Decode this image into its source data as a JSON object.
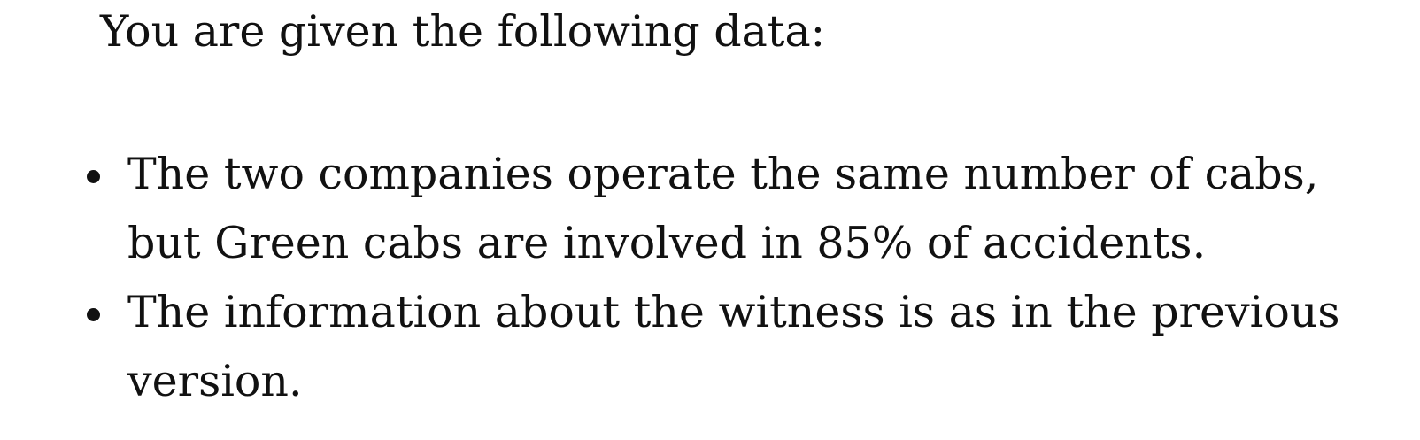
{
  "document": {
    "intro": "You are given the following data:",
    "bullets": [
      "The two companies operate the same number of cabs, but Green cabs are involved in 85% of accidents.",
      "The information about the witness is as in the previous version."
    ]
  }
}
